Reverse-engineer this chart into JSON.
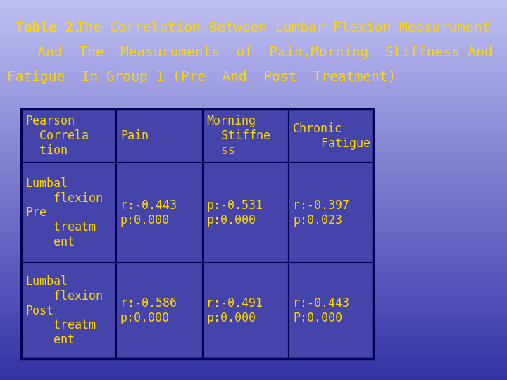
{
  "title_bold": "Table 2.",
  "title_rest": " The Correlation Between Lumbar Flexion Measurument",
  "subtitle1": "  And  The  Measuruments  of  Pain,Morning  Stiffness And  Chronic",
  "subtitle2": "Fatigue  In Group 1 (Pre  And  Post  Treatment)",
  "text_color": "#FFD700",
  "table_border_color": "#000055",
  "table_bg": "#4444AA",
  "title_fontsize": 14,
  "cell_fontsize": 12,
  "col_headers": [
    "Pearson\n  Correla\n  tion",
    "Pain",
    "Morning\n  Stiffne\n  ss",
    "Chronic\n    Fatigue"
  ],
  "row1_col1": "Lumbal\n    flexion\nPre\n    treatm\n    ent",
  "row2_col1": "Lumbal\n    flexion\nPost\n    treatm\n    ent",
  "row1_col2": "r:-0.443\np:0.000",
  "row1_col3": "p:-0.531\np:0.000",
  "row1_col4": "r:-0.397\np:0.023",
  "row2_col2": "r:-0.586\np:0.000",
  "row2_col3": "r:-0.491\np:0.000",
  "row2_col4": "r:-0.443\nP:0.000"
}
